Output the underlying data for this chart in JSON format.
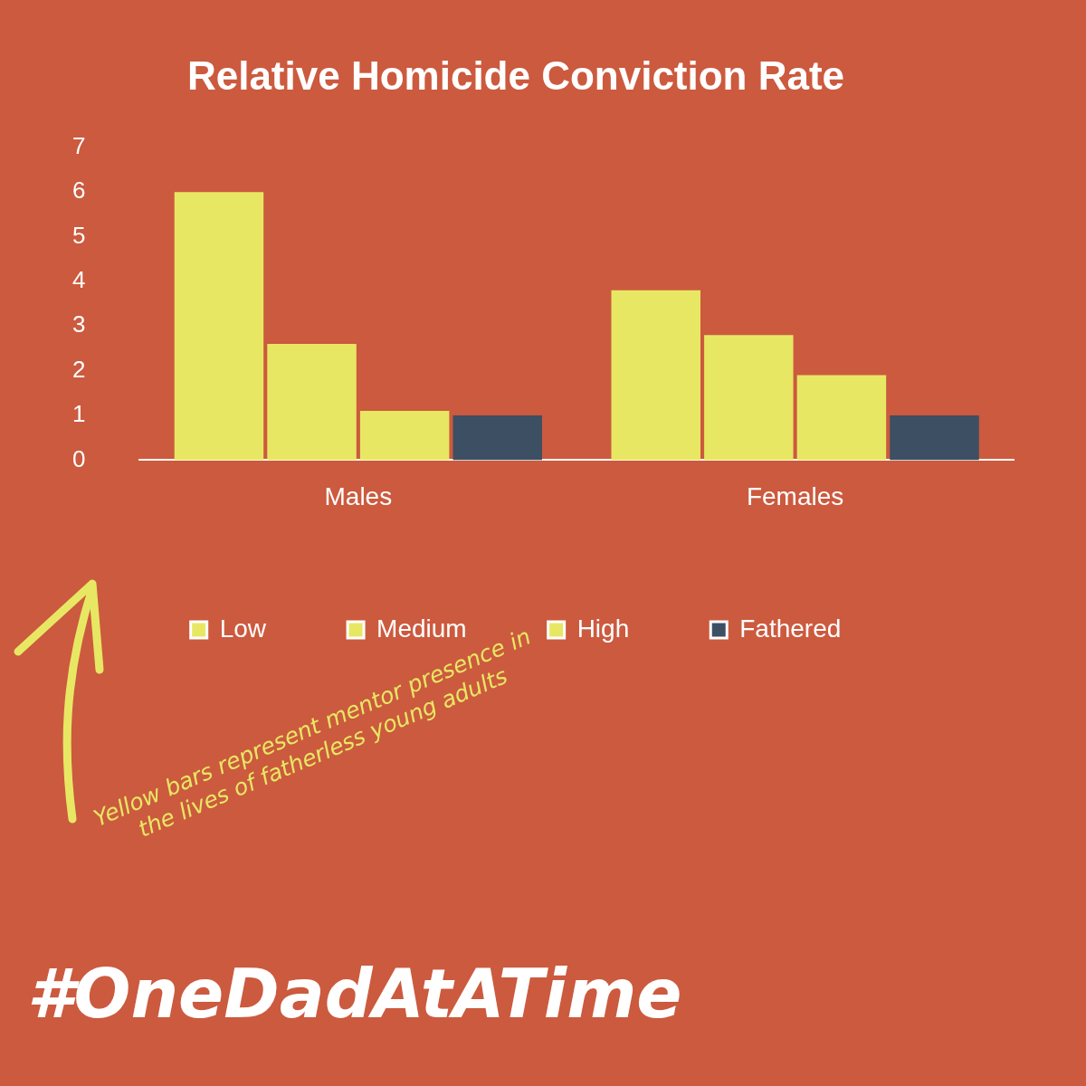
{
  "chart_data": {
    "type": "bar",
    "title": "Relative Homicide Conviction Rate",
    "categories": [
      "Males",
      "Females"
    ],
    "series": [
      {
        "name": "Low",
        "color": "#e8e764",
        "values": [
          6.0,
          3.8
        ]
      },
      {
        "name": "Medium",
        "color": "#e8e764",
        "values": [
          2.6,
          2.8
        ]
      },
      {
        "name": "High",
        "color": "#e8e764",
        "values": [
          1.1,
          1.9
        ]
      },
      {
        "name": "Fathered",
        "color": "#3d4f63",
        "values": [
          1.0,
          1.0
        ]
      }
    ],
    "ylim": [
      0,
      7
    ],
    "yticks": [
      0,
      1,
      2,
      3,
      4,
      5,
      6,
      7
    ],
    "grid": false,
    "legend": "bottom",
    "annotations": [
      "Yellow bars represent mentor presence in the lives of fatherless young adults",
      "#OneDadAtATime"
    ]
  }
}
